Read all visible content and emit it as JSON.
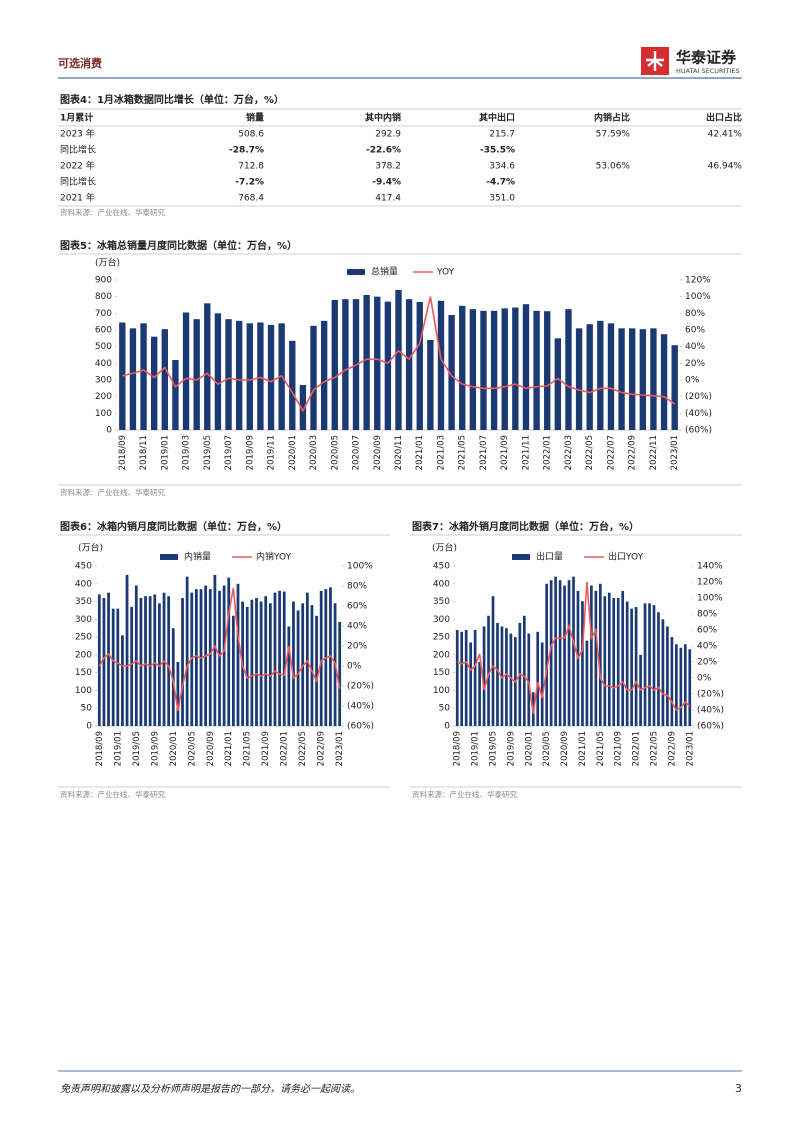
{
  "header": {
    "section": "可选消费",
    "logo_name": "华泰证券",
    "logo_sub": "HUATAI SECURITIES"
  },
  "table": {
    "title": "图表4：1月冰箱数据同比增长（单位：万台，%）",
    "columns": [
      "1月累计",
      "销量",
      "其中内销",
      "其中出口",
      "内销占比",
      "出口占比"
    ],
    "rows": [
      {
        "label": "2023 年",
        "cells": [
          "508.6",
          "292.9",
          "215.7",
          "57.59%",
          "42.41%"
        ]
      },
      {
        "label": "同比增长",
        "cells": [
          "-28.7%",
          "-22.6%",
          "-35.5%"
        ],
        "bold": true
      },
      {
        "label": "2022 年",
        "cells": [
          "712.8",
          "378.2",
          "334.6",
          "53.06%",
          "46.94%"
        ]
      },
      {
        "label": "同比增长",
        "cells": [
          "-7.2%",
          "-9.4%",
          "-4.7%"
        ],
        "bold": true
      },
      {
        "label": "2021 年",
        "cells": [
          "768.4",
          "417.4",
          "351.0"
        ]
      }
    ],
    "source": "资料来源：产业在线、华泰研究"
  },
  "chart_data": [
    {
      "type": "combo",
      "title": "图表5：冰箱总销量月度同比数据（单位：万台，%）",
      "y_label": "(万台)",
      "source": "资料来源：产业在线、华泰研究",
      "categories": [
        "2018/09",
        null,
        "2018/11",
        null,
        "2019/01",
        null,
        "2019/03",
        null,
        "2019/05",
        null,
        "2019/07",
        null,
        "2019/09",
        null,
        "2019/11",
        null,
        "2020/01",
        null,
        "2020/03",
        null,
        "2020/05",
        null,
        "2020/07",
        null,
        "2020/09",
        null,
        "2020/11",
        null,
        "2021/01",
        null,
        "2021/03",
        null,
        "2021/05",
        null,
        "2021/07",
        null,
        "2021/09",
        null,
        "2021/11",
        null,
        "2022/01",
        null,
        "2022/03",
        null,
        "2022/05",
        null,
        "2022/07",
        null,
        "2022/09",
        null,
        "2022/11",
        null,
        "2023/01"
      ],
      "ylim": [
        0,
        900
      ],
      "yticks": [
        0,
        100,
        200,
        300,
        400,
        500,
        600,
        700,
        800,
        900
      ],
      "y2lim": [
        -60,
        120
      ],
      "y2ticks": [
        {
          "value": -60,
          "label": "(60%)"
        },
        {
          "value": -40,
          "label": "(40%)"
        },
        {
          "value": -20,
          "label": "(20%)"
        },
        {
          "value": 0,
          "label": "0%"
        },
        {
          "value": 20,
          "label": "20%"
        },
        {
          "value": 40,
          "label": "40%"
        },
        {
          "value": 60,
          "label": "60%"
        },
        {
          "value": 80,
          "label": "80%"
        },
        {
          "value": 100,
          "label": "100%"
        },
        {
          "value": 120,
          "label": "120%"
        }
      ],
      "series": [
        {
          "name": "总销量",
          "kind": "bar",
          "color": "#1b3a73",
          "values": [
            645,
            610,
            640,
            560,
            605,
            420,
            705,
            665,
            760,
            700,
            665,
            655,
            640,
            645,
            630,
            640,
            535,
            270,
            625,
            655,
            780,
            785,
            785,
            810,
            800,
            770,
            840,
            785,
            768.4,
            540,
            775,
            690,
            745,
            725,
            715,
            715,
            730,
            735,
            755,
            715,
            712.8,
            550,
            725,
            610,
            635,
            655,
            640,
            610,
            610,
            605,
            610,
            575,
            508.6
          ]
        },
        {
          "name": "YOY",
          "kind": "line",
          "axis": "y2",
          "color": "#f05a5a",
          "values": [
            5,
            8,
            12,
            3,
            15,
            -8,
            2,
            0,
            8,
            -5,
            2,
            0,
            0,
            3,
            -2,
            5,
            -15,
            -37,
            -12,
            -2,
            3,
            12,
            18,
            25,
            25,
            20,
            35,
            25,
            44,
            100,
            25,
            5,
            -5,
            -8,
            -10,
            -10,
            -8,
            -5,
            -10,
            -8,
            -7.2,
            2,
            -8,
            -12,
            -15,
            -10,
            -10,
            -15,
            -17,
            -18,
            -19,
            -20,
            -28.7
          ]
        }
      ]
    },
    {
      "type": "combo",
      "title": "图表6：冰箱内销月度同比数据（单位：万台，%）",
      "y_label": "(万台)",
      "source": "资料来源：产业在线、华泰研究",
      "categories": [
        "2018/09",
        null,
        null,
        null,
        "2019/01",
        null,
        null,
        null,
        "2019/05",
        null,
        null,
        null,
        "2019/09",
        null,
        null,
        null,
        "2020/01",
        null,
        null,
        null,
        "2020/05",
        null,
        null,
        null,
        "2020/09",
        null,
        null,
        null,
        "2021/01",
        null,
        null,
        null,
        "2021/05",
        null,
        null,
        null,
        "2021/09",
        null,
        null,
        null,
        "2022/01",
        null,
        null,
        null,
        "2022/05",
        null,
        null,
        null,
        "2022/09",
        null,
        null,
        null,
        "2023/01"
      ],
      "ylim": [
        0,
        450
      ],
      "yticks": [
        0,
        50,
        100,
        150,
        200,
        250,
        300,
        350,
        400,
        450
      ],
      "y2lim": [
        -60,
        100
      ],
      "y2ticks": [
        {
          "value": -60,
          "label": "(60%)"
        },
        {
          "value": -40,
          "label": "(40%)"
        },
        {
          "value": -20,
          "label": "(20%)"
        },
        {
          "value": 0,
          "label": "0%"
        },
        {
          "value": 20,
          "label": "20%"
        },
        {
          "value": 40,
          "label": "40%"
        },
        {
          "value": 60,
          "label": "60%"
        },
        {
          "value": 80,
          "label": "80%"
        },
        {
          "value": 100,
          "label": "100%"
        }
      ],
      "series": [
        {
          "name": "内销量",
          "kind": "bar",
          "color": "#1b3a73",
          "values": [
            370,
            360,
            375,
            330,
            330,
            255,
            425,
            335,
            395,
            360,
            365,
            365,
            370,
            345,
            375,
            365,
            275,
            180,
            360,
            420,
            375,
            385,
            385,
            395,
            385,
            425,
            380,
            395,
            417.4,
            310,
            400,
            350,
            335,
            355,
            360,
            350,
            365,
            345,
            375,
            380,
            378.2,
            280,
            350,
            325,
            345,
            375,
            340,
            310,
            380,
            385,
            390,
            345,
            292.9
          ]
        },
        {
          "name": "内销YOY",
          "kind": "line",
          "axis": "y2",
          "color": "#f05a5a",
          "values": [
            0,
            8,
            12,
            5,
            3,
            0,
            0,
            2,
            5,
            0,
            2,
            0,
            3,
            0,
            5,
            0,
            -15,
            -45,
            -20,
            0,
            8,
            10,
            8,
            10,
            12,
            20,
            10,
            15,
            52,
            78,
            30,
            0,
            -12,
            -10,
            -8,
            -10,
            -8,
            -10,
            -5,
            -8,
            -9.4,
            20,
            -12,
            -8,
            0,
            5,
            -5,
            -15,
            5,
            8,
            10,
            3,
            -22.6
          ]
        }
      ]
    },
    {
      "type": "combo",
      "title": "图表7：冰箱外销月度同比数据（单位：万台，%）",
      "y_label": "(万台)",
      "source": "资料来源：产业在线、华泰研究",
      "categories": [
        "2018/09",
        null,
        null,
        null,
        "2019/01",
        null,
        null,
        null,
        "2019/05",
        null,
        null,
        null,
        "2019/09",
        null,
        null,
        null,
        "2020/01",
        null,
        null,
        null,
        "2020/05",
        null,
        null,
        null,
        "2020/09",
        null,
        null,
        null,
        "2021/01",
        null,
        null,
        null,
        "2021/05",
        null,
        null,
        null,
        "2021/09",
        null,
        null,
        null,
        "2022/01",
        null,
        null,
        null,
        "2022/05",
        null,
        null,
        null,
        "2022/09",
        null,
        null,
        null,
        "2023/01"
      ],
      "ylim": [
        0,
        450
      ],
      "yticks": [
        0,
        50,
        100,
        150,
        200,
        250,
        300,
        350,
        400,
        450
      ],
      "y2lim": [
        -60,
        140
      ],
      "y2ticks": [
        {
          "value": -60,
          "label": "(60%)"
        },
        {
          "value": -40,
          "label": "(40%)"
        },
        {
          "value": -20,
          "label": "(20%)"
        },
        {
          "value": 0,
          "label": "0%"
        },
        {
          "value": 20,
          "label": "20%"
        },
        {
          "value": 40,
          "label": "40%"
        },
        {
          "value": 60,
          "label": "60%"
        },
        {
          "value": 80,
          "label": "80%"
        },
        {
          "value": 100,
          "label": "100%"
        },
        {
          "value": 120,
          "label": "120%"
        },
        {
          "value": 140,
          "label": "140%"
        }
      ],
      "series": [
        {
          "name": "出口量",
          "kind": "bar",
          "color": "#1b3a73",
          "values": [
            270,
            265,
            270,
            235,
            270,
            180,
            280,
            310,
            365,
            290,
            280,
            275,
            260,
            250,
            290,
            310,
            260,
            95,
            265,
            235,
            400,
            410,
            420,
            410,
            395,
            410,
            420,
            380,
            351,
            240,
            395,
            380,
            400,
            365,
            375,
            360,
            360,
            380,
            350,
            330,
            334.6,
            200,
            345,
            345,
            340,
            320,
            300,
            280,
            250,
            230,
            220,
            230,
            215.7
          ]
        },
        {
          "name": "出口YOY",
          "kind": "line",
          "axis": "y2",
          "color": "#f05a5a",
          "values": [
            20,
            18,
            20,
            10,
            15,
            30,
            -15,
            5,
            15,
            10,
            0,
            5,
            0,
            -5,
            5,
            2,
            -5,
            -45,
            -5,
            -25,
            10,
            40,
            50,
            50,
            50,
            65,
            45,
            25,
            35,
            120,
            50,
            60,
            0,
            -10,
            -10,
            -12,
            -10,
            -5,
            -15,
            -15,
            -4.7,
            -15,
            -12,
            -10,
            -15,
            -12,
            -20,
            -22,
            -30,
            -40,
            -37,
            -30,
            -35.5
          ]
        }
      ]
    }
  ],
  "footer": {
    "disclaimer": "免责声明和披露以及分析师声明是报告的一部分，请务必一起阅读。",
    "page": "3"
  }
}
